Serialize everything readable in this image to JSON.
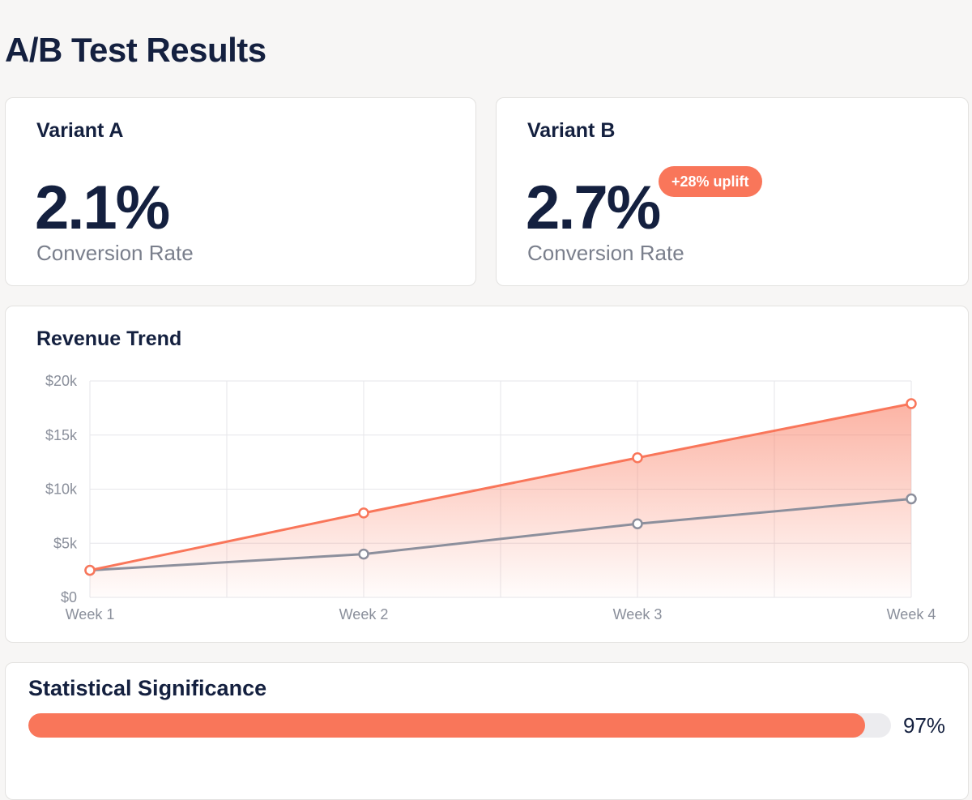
{
  "header": {
    "title": "A/B Test Results"
  },
  "variants": {
    "a": {
      "name": "Variant A",
      "value": "2.1%",
      "label": "Conversion Rate"
    },
    "b": {
      "name": "Variant B",
      "value": "2.7%",
      "label": "Conversion Rate",
      "badge": "+28% uplift"
    }
  },
  "revenue": {
    "title": "Revenue Trend"
  },
  "chart_data": {
    "type": "area",
    "title": "Revenue Trend",
    "xlabel": "",
    "ylabel": "",
    "categories": [
      "Week 1",
      "Week 2",
      "Week 3",
      "Week 4"
    ],
    "series": [
      {
        "values": [
          2500,
          7800,
          12900,
          17900
        ],
        "color": "#f9765a",
        "fill": true
      },
      {
        "values": [
          2500,
          4000,
          6800,
          9100
        ],
        "color": "#8c8f9c",
        "fill": false
      }
    ],
    "yticks": [
      {
        "value": 0,
        "label": "$0"
      },
      {
        "value": 5000,
        "label": "$5k"
      },
      {
        "value": 10000,
        "label": "$10k"
      },
      {
        "value": 15000,
        "label": "$15k"
      },
      {
        "value": 20000,
        "label": "$20k"
      }
    ],
    "ylim": [
      0,
      20000
    ],
    "grid": true,
    "legend": "none"
  },
  "significance": {
    "title": "Statistical Significance",
    "value_label": "97%",
    "fraction": 0.97
  },
  "colors": {
    "accent": "#f9765a",
    "secondary": "#8c8f9c",
    "text": "#14203f",
    "muted": "#7a7f8c"
  }
}
